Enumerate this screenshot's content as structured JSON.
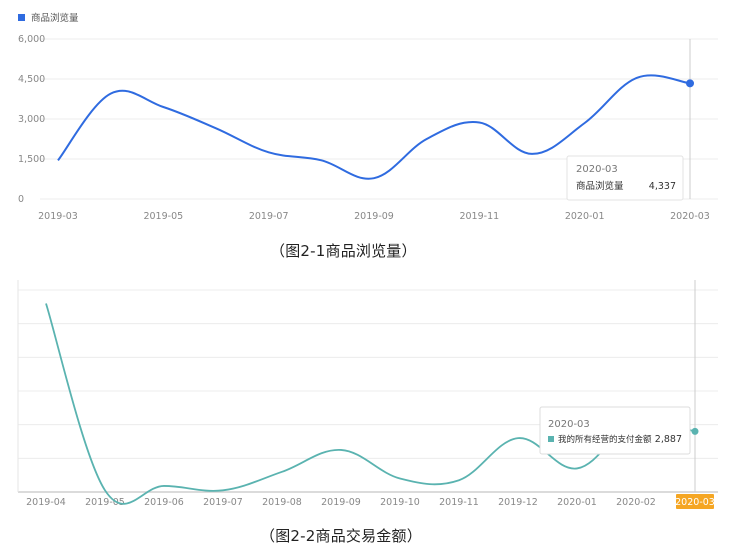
{
  "chart_data": [
    {
      "type": "line",
      "legend": "商品浏览量",
      "legend_position": "top-left",
      "color": "#2f6be0",
      "grid": true,
      "ylim": [
        0,
        6000
      ],
      "y_ticks": [
        "0",
        "1,500",
        "3,000",
        "4,500",
        "6,000"
      ],
      "y_tick_values": [
        0,
        1500,
        3000,
        4500,
        6000
      ],
      "x": [
        "2019-03",
        "2019-04",
        "2019-05",
        "2019-06",
        "2019-07",
        "2019-08",
        "2019-09",
        "2019-10",
        "2019-11",
        "2019-12",
        "2020-01",
        "2020-02",
        "2020-03"
      ],
      "x_tick_labels": [
        "2019-03",
        "2019-05",
        "2019-07",
        "2019-09",
        "2019-11",
        "2020-01",
        "2020-03"
      ],
      "series": [
        {
          "name": "商品浏览量",
          "values": [
            1450,
            3950,
            3450,
            2650,
            1750,
            1450,
            780,
            2250,
            2870,
            1690,
            2850,
            4550,
            4337
          ]
        }
      ],
      "tooltip": {
        "title": "2020-03",
        "label": "商品浏览量",
        "value": "4,337"
      },
      "caption": "（图2-1商品浏览量）"
    },
    {
      "type": "line",
      "color": "#5ab3b0",
      "grid": true,
      "ylim": [
        0,
        6
      ],
      "x": [
        "2019-04",
        "2019-05",
        "2019-06",
        "2019-07",
        "2019-08",
        "2019-09",
        "2019-10",
        "2019-11",
        "2019-12",
        "2020-01",
        "2020-02",
        "2020-03"
      ],
      "x_tick_labels": [
        "2019-04",
        "2019-05",
        "2019-06",
        "2019-07",
        "2019-08",
        "2019-09",
        "2019-10",
        "2019-11",
        "2019-12",
        "2020-01",
        "2020-02",
        "2020-03"
      ],
      "highlighted_tick": "2020-03",
      "highlight_color": "#f5a623",
      "series": [
        {
          "name": "我的所有经营的支付金额",
          "values": [
            5.6,
            0.05,
            0.18,
            0.05,
            0.6,
            1.25,
            0.4,
            0.35,
            1.6,
            0.7,
            2.1,
            1.8
          ]
        }
      ],
      "tooltip": {
        "title": "2020-03",
        "label": "我的所有经营的支付金额",
        "value": "2,887"
      },
      "caption": "（图2-2商品交易金额）"
    }
  ]
}
